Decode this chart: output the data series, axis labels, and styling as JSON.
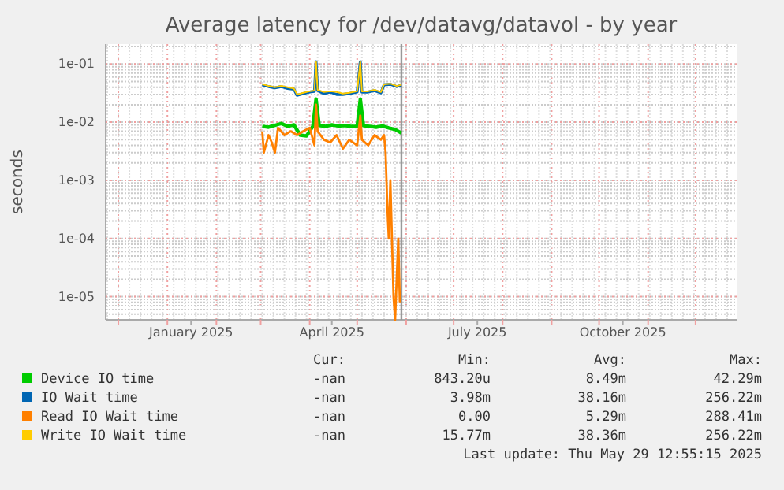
{
  "chart_data": {
    "type": "line",
    "title": "Average latency for /dev/datavg/datavol - by year",
    "ylabel": "seconds",
    "log": "y",
    "grid": true,
    "legend": "bottom",
    "xlim": [
      "2024-11-23",
      "2025-12-27"
    ],
    "xticks": [
      {
        "value": "2024-12-01",
        "label": null
      },
      {
        "value": "2025-01-01",
        "label": null
      },
      {
        "value": "2025-02-01",
        "label": null
      },
      {
        "value": "2025-03-01",
        "label": null
      },
      {
        "value": "2025-04-01",
        "label": null
      },
      {
        "value": "2025-05-01",
        "label": null
      },
      {
        "value": "2025-06-01",
        "label": null
      },
      {
        "value": "2025-07-01",
        "label": null
      },
      {
        "value": "2025-08-01",
        "label": null
      },
      {
        "value": "2025-09-01",
        "label": null
      },
      {
        "value": "2025-10-01",
        "label": null
      },
      {
        "value": "2025-11-01",
        "label": null
      },
      {
        "value": "2025-12-01",
        "label": null
      },
      {
        "value": "2025-01-16",
        "label": "January 2025"
      },
      {
        "value": "2025-04-15",
        "label": "April 2025"
      },
      {
        "value": "2025-07-16",
        "label": "July 2025"
      },
      {
        "value": "2025-10-16",
        "label": "October 2025"
      }
    ],
    "ylim": [
      4e-06,
      0.22
    ],
    "yticks": [
      {
        "value": 1e-05,
        "label": "1e-05"
      },
      {
        "value": 0.0001,
        "label": "1e-04"
      },
      {
        "value": 0.001,
        "label": "1e-03"
      },
      {
        "value": 0.01,
        "label": "1e-02"
      },
      {
        "value": 0.1,
        "label": "1e-01"
      }
    ],
    "ref_lines": [
      {
        "axis": "x",
        "value": "2025-05-29",
        "color": "#999999"
      }
    ],
    "series": [
      {
        "name": "Device IO time",
        "color": "#00cc00",
        "x": [
          "2025-03-02",
          "2025-03-06",
          "2025-03-10",
          "2025-03-14",
          "2025-03-18",
          "2025-03-22",
          "2025-03-26",
          "2025-03-30",
          "2025-04-03",
          "2025-04-05",
          "2025-04-07",
          "2025-04-11",
          "2025-04-15",
          "2025-04-19",
          "2025-04-23",
          "2025-04-27",
          "2025-05-01",
          "2025-05-03",
          "2025-05-05",
          "2025-05-09",
          "2025-05-13",
          "2025-05-17",
          "2025-05-21",
          "2025-05-25",
          "2025-05-29"
        ],
        "values": [
          0.0085,
          0.0082,
          0.0088,
          0.0095,
          0.0085,
          0.009,
          0.006,
          0.0058,
          0.0085,
          0.025,
          0.0088,
          0.0085,
          0.009,
          0.0086,
          0.0088,
          0.0085,
          0.0085,
          0.025,
          0.0087,
          0.0085,
          0.0082,
          0.0086,
          0.008,
          0.0075,
          0.0065
        ]
      },
      {
        "name": "IO Wait time",
        "color": "#0066b3",
        "x": [
          "2025-03-02",
          "2025-03-06",
          "2025-03-10",
          "2025-03-14",
          "2025-03-18",
          "2025-03-22",
          "2025-03-24",
          "2025-03-28",
          "2025-04-01",
          "2025-04-04",
          "2025-04-05",
          "2025-04-06",
          "2025-04-10",
          "2025-04-14",
          "2025-04-18",
          "2025-04-22",
          "2025-04-26",
          "2025-05-01",
          "2025-05-03",
          "2025-05-04",
          "2025-05-08",
          "2025-05-12",
          "2025-05-16",
          "2025-05-18",
          "2025-05-22",
          "2025-05-26",
          "2025-05-29"
        ],
        "values": [
          0.044,
          0.041,
          0.039,
          0.041,
          0.038,
          0.037,
          0.029,
          0.031,
          0.033,
          0.034,
          0.11,
          0.035,
          0.031,
          0.033,
          0.03,
          0.03,
          0.031,
          0.033,
          0.11,
          0.033,
          0.033,
          0.035,
          0.032,
          0.044,
          0.045,
          0.041,
          0.043
        ]
      },
      {
        "name": "Read IO Wait time",
        "color": "#ff8000",
        "x": [
          "2025-03-02",
          "2025-03-03",
          "2025-03-06",
          "2025-03-08",
          "2025-03-10",
          "2025-03-12",
          "2025-03-16",
          "2025-03-20",
          "2025-03-24",
          "2025-03-28",
          "2025-04-01",
          "2025-04-04",
          "2025-04-05",
          "2025-04-06",
          "2025-04-10",
          "2025-04-14",
          "2025-04-18",
          "2025-04-22",
          "2025-04-26",
          "2025-05-01",
          "2025-05-03",
          "2025-05-04",
          "2025-05-08",
          "2025-05-12",
          "2025-05-16",
          "2025-05-18",
          "2025-05-19",
          "2025-05-20",
          "2025-05-21",
          "2025-05-22",
          "2025-05-24",
          "2025-05-25",
          "2025-05-27",
          "2025-05-28"
        ],
        "values": [
          0.007,
          0.003,
          0.006,
          0.0045,
          0.003,
          0.008,
          0.006,
          0.007,
          0.006,
          0.007,
          0.008,
          0.004,
          0.02,
          0.007,
          0.005,
          0.0045,
          0.006,
          0.0035,
          0.005,
          0.004,
          0.013,
          0.005,
          0.004,
          0.006,
          0.005,
          0.006,
          0.003,
          0.0004,
          0.0001,
          0.001,
          1e-05,
          4e-06,
          0.0001,
          8e-06
        ]
      },
      {
        "name": "Write IO Wait time",
        "color": "#ffcc00",
        "x": [
          "2025-03-02",
          "2025-03-06",
          "2025-03-10",
          "2025-03-14",
          "2025-03-18",
          "2025-03-22",
          "2025-03-24",
          "2025-03-28",
          "2025-04-01",
          "2025-04-04",
          "2025-04-05",
          "2025-04-06",
          "2025-04-10",
          "2025-04-14",
          "2025-04-18",
          "2025-04-22",
          "2025-04-26",
          "2025-05-01",
          "2025-05-03",
          "2025-05-04",
          "2025-05-08",
          "2025-05-12",
          "2025-05-16",
          "2025-05-18",
          "2025-05-22",
          "2025-05-26",
          "2025-05-29"
        ],
        "values": [
          0.045,
          0.042,
          0.04,
          0.042,
          0.04,
          0.038,
          0.03,
          0.032,
          0.034,
          0.035,
          0.11,
          0.036,
          0.033,
          0.034,
          0.033,
          0.031,
          0.032,
          0.034,
          0.11,
          0.034,
          0.034,
          0.036,
          0.033,
          0.045,
          0.046,
          0.042,
          0.044
        ]
      }
    ],
    "annotations": [
      "Cur:",
      "Min:",
      "Avg:",
      "Max:",
      "-nan",
      "843.20u",
      "8.49m",
      "42.29m",
      "-nan",
      "3.98m",
      "38.16m",
      "256.22m",
      "-nan",
      "0.00",
      "5.29m",
      "288.41m",
      "-nan",
      "15.77m",
      "38.36m",
      "256.22m",
      "Last update: Thu May 29 12:55:15 2025"
    ]
  }
}
